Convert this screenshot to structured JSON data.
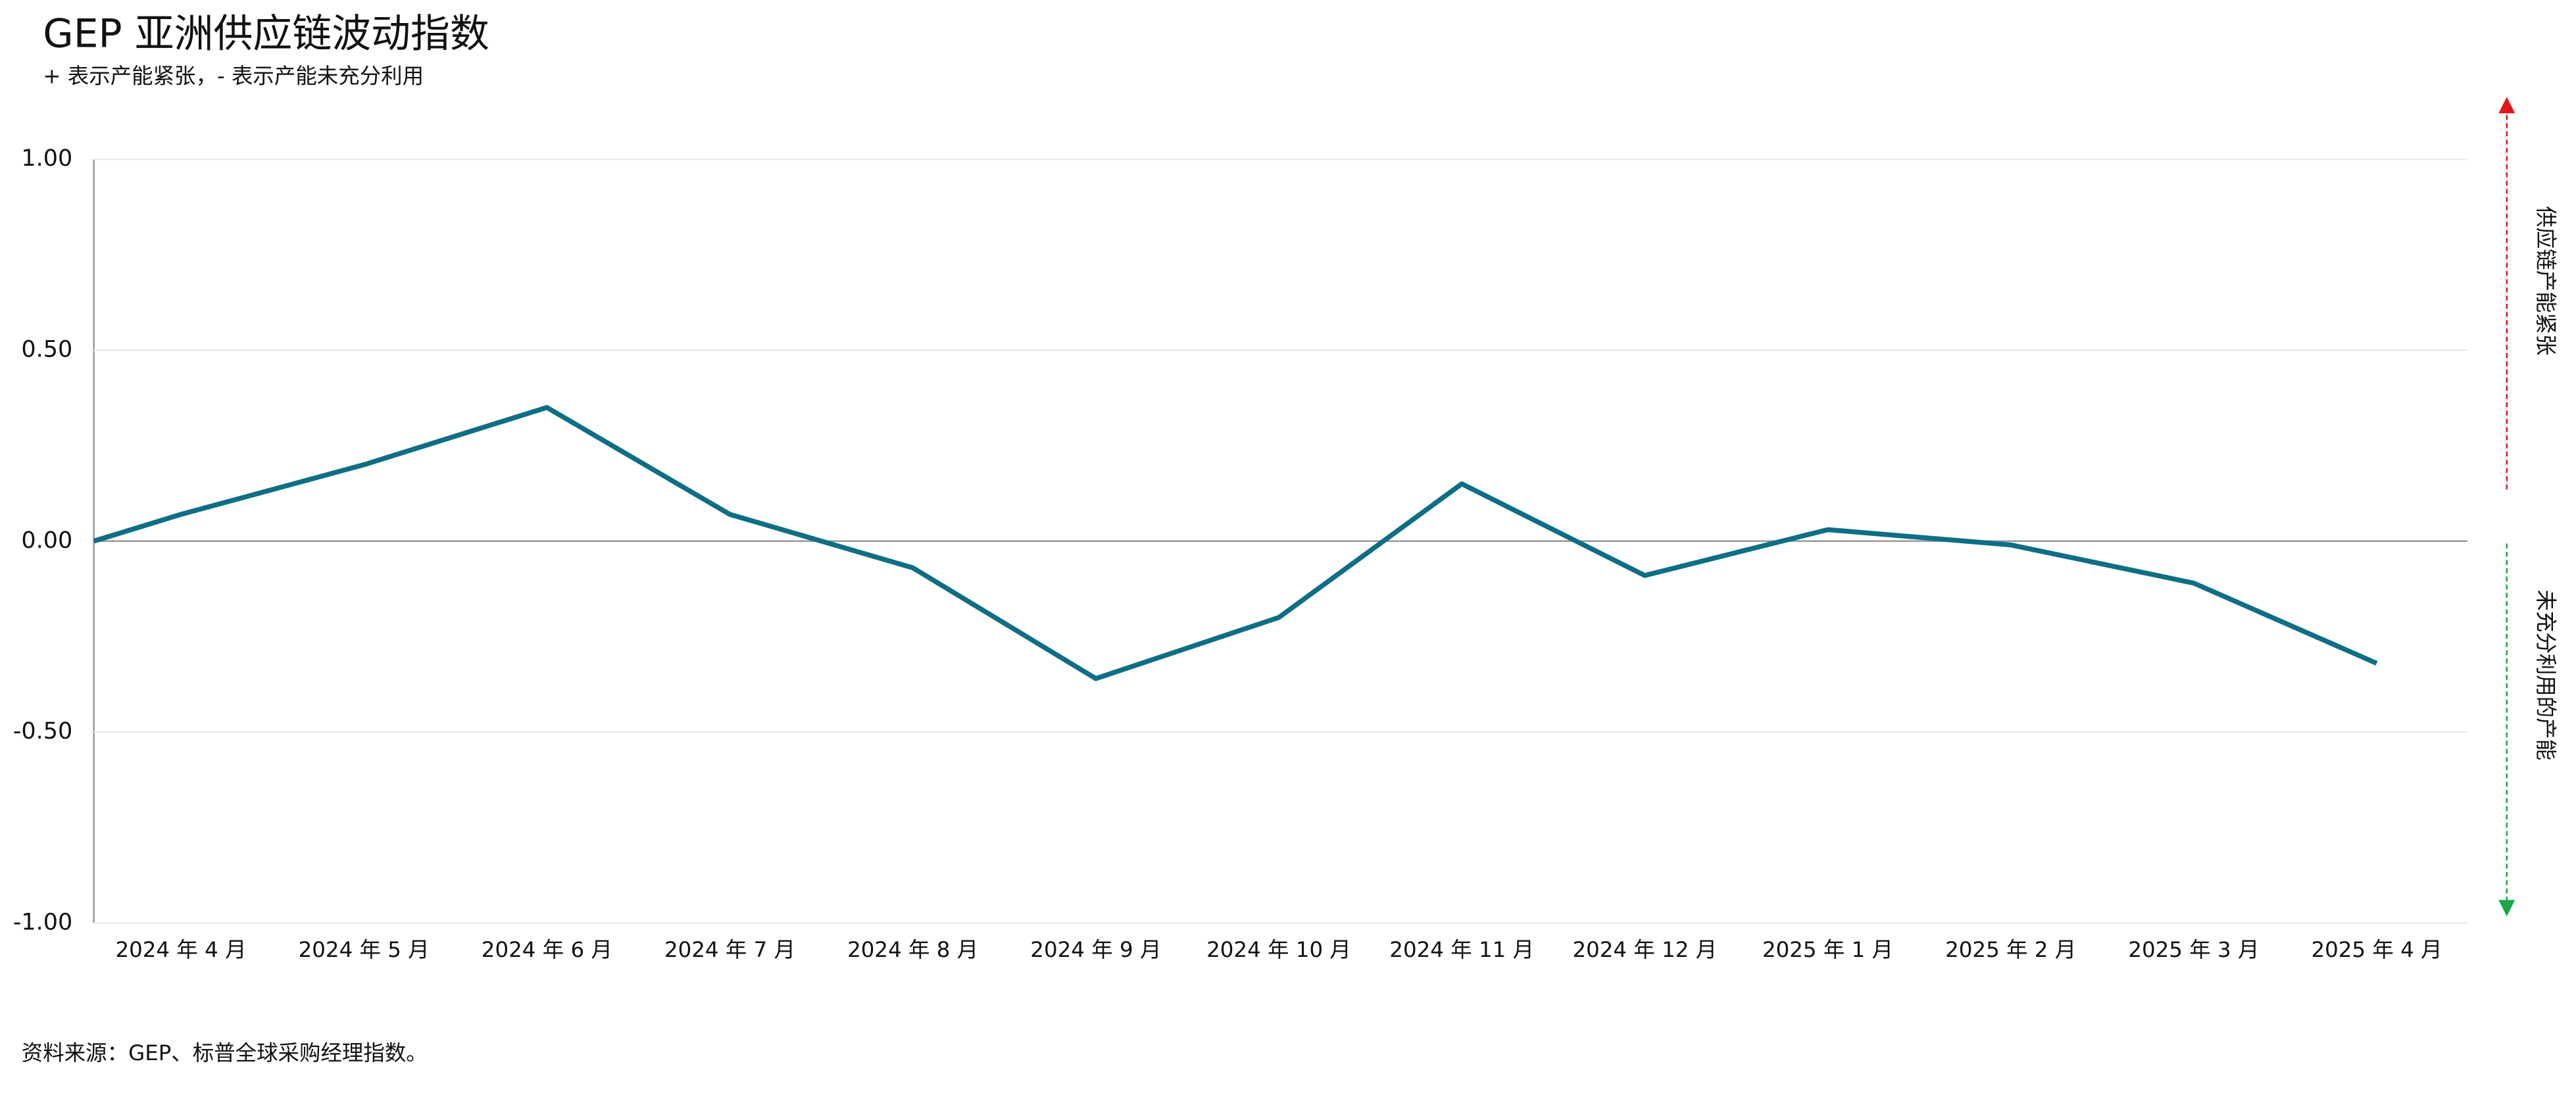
{
  "chart_data": {
    "type": "line",
    "title": "GEP 亚洲供应链波动指数",
    "subtitle": "+ 表示产能紧张，- 表示产能未充分利用",
    "source": "资料来源：GEP、标普全球采购经理指数。",
    "annotations": [
      {
        "text": "供应链产能紧张",
        "color": "#e0161b"
      },
      {
        "text": "未充分利用的产能",
        "color": "#1aa64a"
      }
    ],
    "categories": [
      null,
      "2024 年 4 月",
      "2024 年 5 月",
      "2024 年 6 月",
      "2024 年 7 月",
      "2024 年 8 月",
      "2024 年 9 月",
      "2024 年 10 月",
      "2024 年 11 月",
      "2024 年 12 月",
      "2025 年 1 月",
      "2025 年 2 月",
      "2025 年 3 月",
      "2025 年 4 月"
    ],
    "values": [
      0.0,
      0.07,
      0.2,
      0.35,
      0.07,
      -0.07,
      -0.36,
      -0.2,
      0.15,
      -0.09,
      0.03,
      -0.01,
      -0.11,
      -0.32
    ],
    "color": "#0e6e85",
    "ylim": [
      -1,
      1
    ],
    "yticks": [
      {
        "value": -1,
        "label": "-1.00"
      },
      {
        "value": -0.5,
        "label": "-0.50"
      },
      {
        "value": 0,
        "label": "0.00"
      },
      {
        "value": 0.5,
        "label": "0.50"
      },
      {
        "value": 1,
        "label": "1.00"
      }
    ],
    "grid": true
  }
}
